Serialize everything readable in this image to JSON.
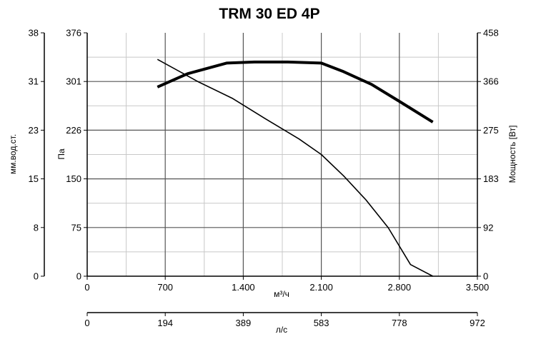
{
  "chart_data": {
    "type": "line",
    "title": "TRM 30 ED 4P",
    "xlabel": "м³/ч",
    "xlabel2": "л/с",
    "ylabel_left_outer": "мм.вод.ст.",
    "ylabel_left_inner": "Па",
    "ylabel_right": "Мощность [Вт]",
    "xlim": [
      0,
      3500
    ],
    "ylim": [
      0,
      376
    ],
    "power_lim": [
      0,
      458
    ],
    "x_ticks": [
      "0",
      "700",
      "1.400",
      "2.100",
      "2.800",
      "3.500"
    ],
    "x2_ticks": [
      "0",
      "194",
      "389",
      "583",
      "778",
      "972"
    ],
    "y_pa_ticks": [
      "0",
      "75",
      "150",
      "226",
      "301",
      "376"
    ],
    "y_mm_ticks": [
      "0",
      "8",
      "15",
      "23",
      "31",
      "38"
    ],
    "y_power_ticks": [
      "0",
      "92",
      "183",
      "275",
      "366",
      "458"
    ],
    "grid": true,
    "series": [
      {
        "axis": "pressure",
        "x": [
          630,
          1000,
          1300,
          1600,
          1900,
          2100,
          2300,
          2500,
          2700,
          2900,
          3100
        ],
        "values": [
          335,
          300,
          275,
          243,
          212,
          188,
          155,
          118,
          75,
          18,
          0
        ]
      },
      {
        "axis": "power",
        "x": [
          630,
          900,
          1250,
          1500,
          1800,
          2100,
          2300,
          2550,
          2800,
          3100
        ],
        "values": [
          356,
          381,
          401,
          403,
          403,
          401,
          385,
          361,
          329,
          290
        ]
      }
    ]
  }
}
